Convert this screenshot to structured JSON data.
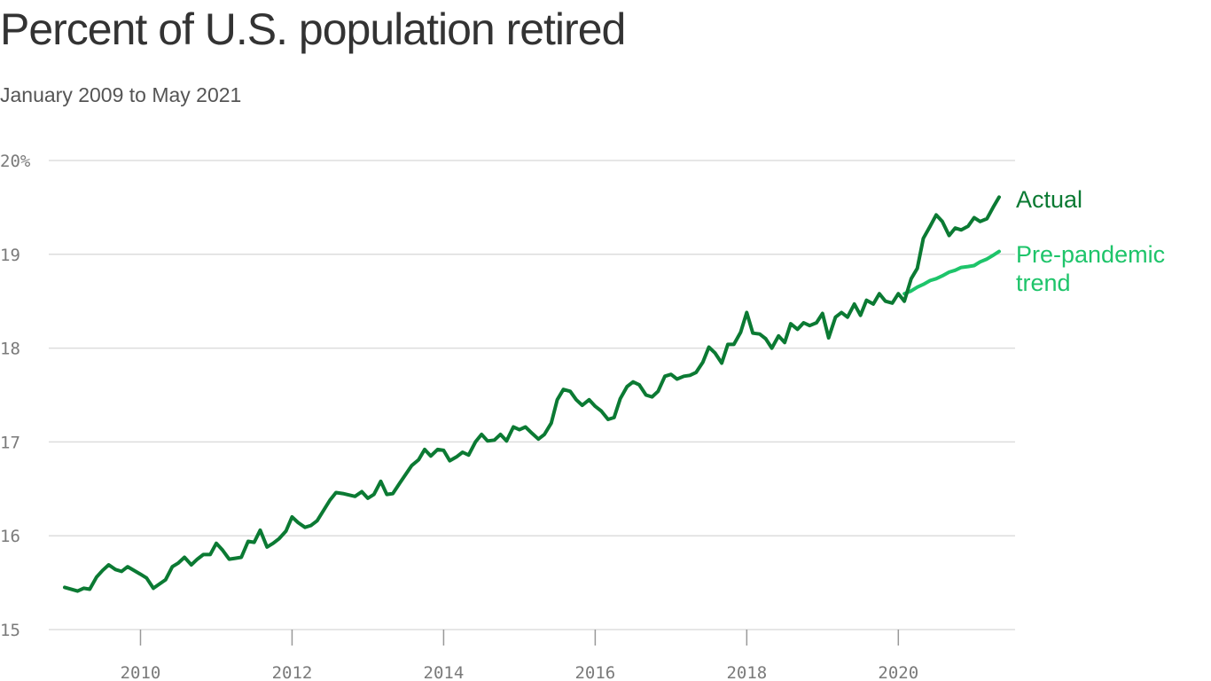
{
  "title": "Percent of U.S. population retired",
  "subtitle": "January 2009 to May 2021",
  "colors": {
    "actual": "#0b7a33",
    "trend": "#1ec46a",
    "grid": "#dddddd",
    "axis_text": "#7a7a7a"
  },
  "chart_data": {
    "type": "line",
    "title": "Percent of U.S. population retired",
    "subtitle": "January 2009 to May 2021",
    "xlabel": "",
    "ylabel": "",
    "ylim": [
      15,
      20
    ],
    "xlim": [
      2009.0,
      2021.33
    ],
    "grid": true,
    "legend": "direct labels at right end of lines",
    "y_ticks": [
      15,
      16,
      17,
      18,
      19,
      20
    ],
    "y_tick_labels": [
      "15",
      "16",
      "17",
      "18",
      "19",
      "20%"
    ],
    "x_ticks": [
      2010,
      2012,
      2014,
      2016,
      2018,
      2020
    ],
    "x_tick_labels": [
      "2010",
      "2012",
      "2014",
      "2016",
      "2018",
      "2020"
    ],
    "series": [
      {
        "name": "Actual",
        "label_lines": [
          "Actual"
        ],
        "color": "#0b7a33",
        "x": [
          2009.0,
          2009.17,
          2009.25,
          2009.33,
          2009.42,
          2009.5,
          2009.58,
          2009.67,
          2009.75,
          2009.83,
          2010.0,
          2010.08,
          2010.17,
          2010.33,
          2010.42,
          2010.5,
          2010.58,
          2010.67,
          2010.75,
          2010.83,
          2010.92,
          2011.0,
          2011.08,
          2011.17,
          2011.25,
          2011.33,
          2011.42,
          2011.5,
          2011.58,
          2011.67,
          2011.75,
          2011.83,
          2011.92,
          2012.0,
          2012.08,
          2012.17,
          2012.25,
          2012.33,
          2012.5,
          2012.58,
          2012.67,
          2012.83,
          2012.92,
          2013.0,
          2013.08,
          2013.17,
          2013.25,
          2013.33,
          2013.42,
          2013.58,
          2013.67,
          2013.75,
          2013.83,
          2013.92,
          2014.0,
          2014.08,
          2014.17,
          2014.25,
          2014.33,
          2014.42,
          2014.5,
          2014.58,
          2014.67,
          2014.75,
          2014.83,
          2014.92,
          2015.0,
          2015.08,
          2015.17,
          2015.25,
          2015.33,
          2015.42,
          2015.5,
          2015.58,
          2015.67,
          2015.75,
          2015.83,
          2015.92,
          2016.0,
          2016.08,
          2016.17,
          2016.25,
          2016.33,
          2016.42,
          2016.5,
          2016.58,
          2016.67,
          2016.75,
          2016.83,
          2016.92,
          2017.0,
          2017.08,
          2017.17,
          2017.25,
          2017.33,
          2017.42,
          2017.5,
          2017.58,
          2017.67,
          2017.75,
          2017.83,
          2017.92,
          2018.0,
          2018.08,
          2018.17,
          2018.25,
          2018.33,
          2018.42,
          2018.5,
          2018.58,
          2018.67,
          2018.75,
          2018.83,
          2018.92,
          2019.0,
          2019.08,
          2019.17,
          2019.25,
          2019.33,
          2019.42,
          2019.5,
          2019.58,
          2019.67,
          2019.75,
          2019.83,
          2019.92,
          2020.0,
          2020.08,
          2020.17,
          2020.25,
          2020.33,
          2020.42,
          2020.5,
          2020.58,
          2020.67,
          2020.75,
          2020.83,
          2020.92,
          2021.0,
          2021.08,
          2021.17,
          2021.25,
          2021.33
        ],
        "values": [
          15.45,
          15.41,
          15.44,
          15.43,
          15.56,
          15.63,
          15.69,
          15.64,
          15.62,
          15.67,
          15.59,
          15.55,
          15.44,
          15.53,
          15.67,
          15.71,
          15.77,
          15.69,
          15.75,
          15.8,
          15.8,
          15.92,
          15.85,
          15.75,
          15.76,
          15.77,
          15.94,
          15.93,
          16.06,
          15.88,
          15.92,
          15.97,
          16.05,
          16.2,
          16.14,
          16.09,
          16.11,
          16.16,
          16.38,
          16.46,
          16.45,
          16.42,
          16.47,
          16.4,
          16.44,
          16.58,
          16.44,
          16.45,
          16.56,
          16.75,
          16.81,
          16.92,
          16.85,
          16.92,
          16.91,
          16.8,
          16.84,
          16.89,
          16.86,
          17.0,
          17.08,
          17.01,
          17.02,
          17.08,
          17.01,
          17.16,
          17.13,
          17.16,
          17.09,
          17.03,
          17.08,
          17.2,
          17.45,
          17.56,
          17.54,
          17.45,
          17.39,
          17.45,
          17.38,
          17.33,
          17.24,
          17.26,
          17.46,
          17.59,
          17.64,
          17.61,
          17.5,
          17.48,
          17.54,
          17.7,
          17.72,
          17.67,
          17.7,
          17.71,
          17.74,
          17.85,
          18.01,
          17.95,
          17.84,
          18.04,
          18.04,
          18.17,
          18.38,
          18.16,
          18.15,
          18.1,
          18.0,
          18.13,
          18.06,
          18.26,
          18.2,
          18.27,
          18.24,
          18.27,
          18.37,
          18.11,
          18.33,
          18.38,
          18.33,
          18.47,
          18.35,
          18.51,
          18.47,
          18.58,
          18.5,
          18.48,
          18.58,
          18.5,
          18.74,
          18.85,
          19.17,
          19.3,
          19.42,
          19.35,
          19.2,
          19.28,
          19.26,
          19.3,
          19.39,
          19.35,
          19.38,
          19.5,
          19.61
        ]
      },
      {
        "name": "Pre-pandemic trend",
        "label_lines": [
          "Pre-pandemic",
          "trend"
        ],
        "color": "#1ec46a",
        "x": [
          2020.08,
          2020.17,
          2020.25,
          2020.33,
          2020.42,
          2020.5,
          2020.58,
          2020.67,
          2020.75,
          2020.83,
          2020.92,
          2021.0,
          2021.08,
          2021.17,
          2021.25,
          2021.33
        ],
        "values": [
          18.58,
          18.61,
          18.65,
          18.68,
          18.72,
          18.74,
          18.77,
          18.81,
          18.83,
          18.86,
          18.87,
          18.88,
          18.92,
          18.95,
          18.99,
          19.03
        ]
      }
    ]
  }
}
